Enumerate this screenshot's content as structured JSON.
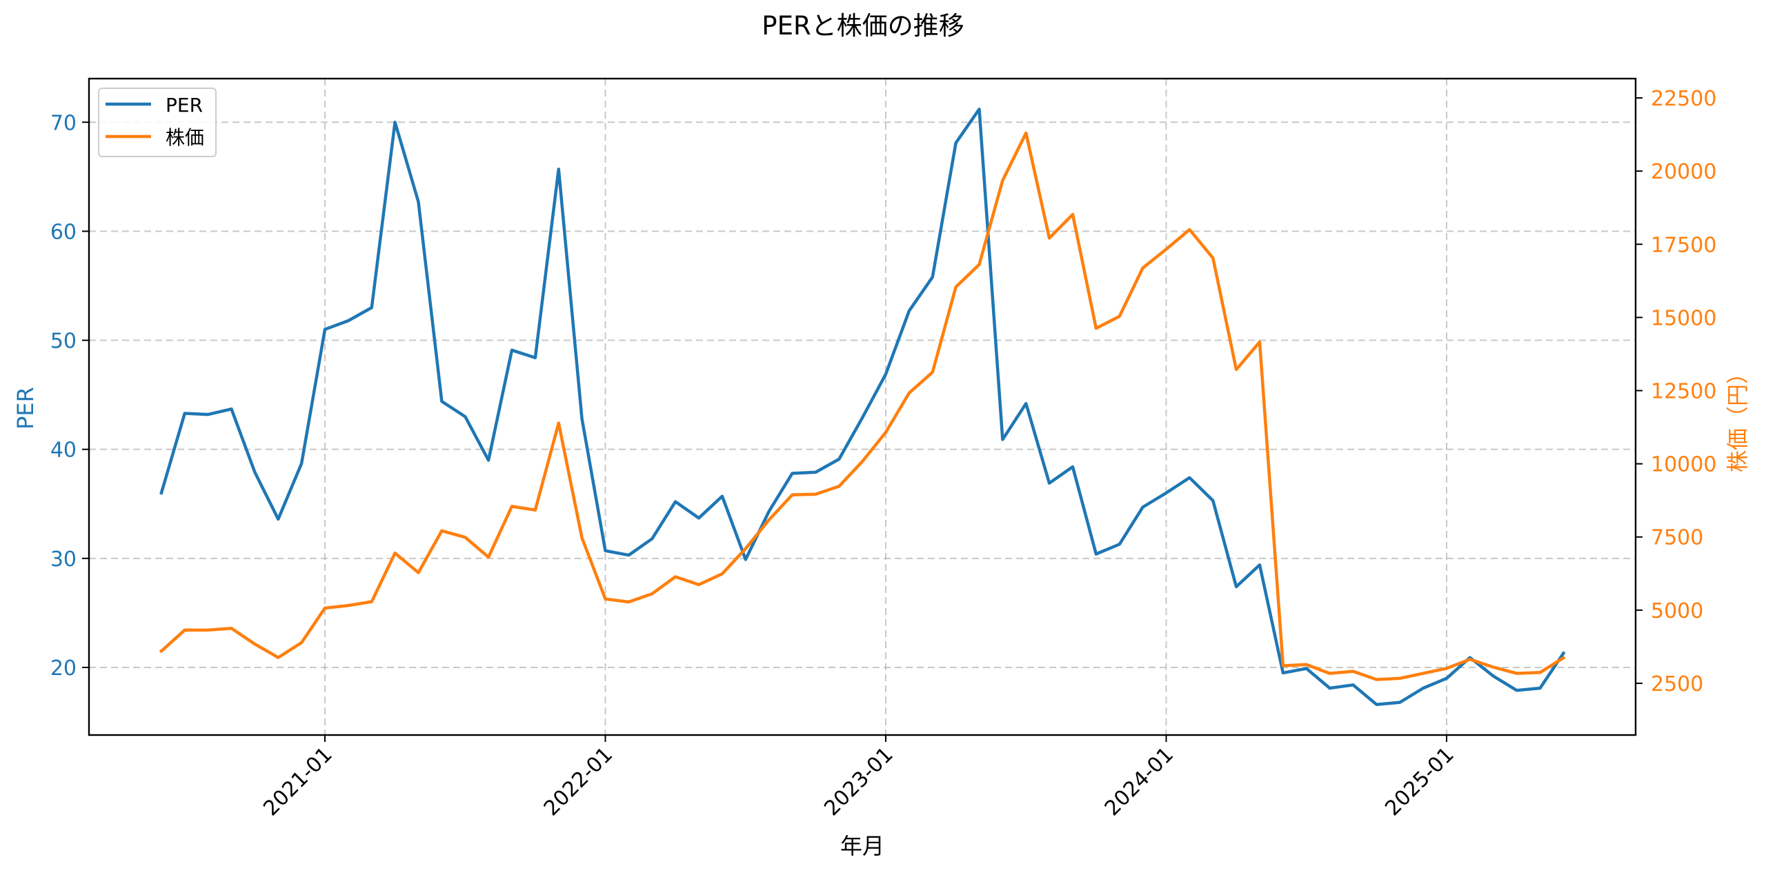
{
  "chart_data": {
    "type": "line",
    "title": "PERと株価の推移",
    "xlabel": "年月",
    "ylabel": "PER",
    "ylabel_right": "株価（円）",
    "x_start": "2020-06",
    "x_end": "2025-06",
    "x_frequency": "monthly",
    "x": [
      "2020-06",
      "2020-07",
      "2020-08",
      "2020-09",
      "2020-10",
      "2020-11",
      "2020-12",
      "2021-01",
      "2021-02",
      "2021-03",
      "2021-04",
      "2021-05",
      "2021-06",
      "2021-07",
      "2021-08",
      "2021-09",
      "2021-10",
      "2021-11",
      "2021-12",
      "2022-01",
      "2022-02",
      "2022-03",
      "2022-04",
      "2022-05",
      "2022-06",
      "2022-07",
      "2022-08",
      "2022-09",
      "2022-10",
      "2022-11",
      "2022-12",
      "2023-01",
      "2023-02",
      "2023-03",
      "2023-04",
      "2023-05",
      "2023-06",
      "2023-07",
      "2023-08",
      "2023-09",
      "2023-10",
      "2023-11",
      "2023-12",
      "2024-01",
      "2024-02",
      "2024-03",
      "2024-04",
      "2024-05",
      "2024-06",
      "2024-07",
      "2024-08",
      "2024-09",
      "2024-10",
      "2024-11",
      "2024-12",
      "2025-01",
      "2025-02",
      "2025-03",
      "2025-04",
      "2025-05",
      "2025-06"
    ],
    "x_ticks": [
      "2021-01",
      "2022-01",
      "2023-01",
      "2024-01",
      "2025-01"
    ],
    "series": [
      {
        "name": "PER",
        "axis": "left",
        "color": "#1f77b4",
        "values": [
          36.0,
          43.3,
          43.2,
          43.7,
          37.9,
          33.6,
          38.7,
          51.0,
          51.8,
          53.0,
          70.0,
          62.7,
          44.4,
          43.0,
          39.0,
          49.1,
          48.4,
          65.7,
          42.8,
          30.7,
          30.3,
          31.8,
          35.2,
          33.7,
          35.7,
          29.9,
          34.3,
          37.8,
          37.9,
          39.1,
          42.9,
          46.9,
          52.7,
          55.8,
          68.1,
          71.2,
          40.9,
          44.2,
          36.9,
          38.4,
          30.4,
          31.3,
          34.7,
          36.0,
          37.4,
          35.3,
          27.4,
          29.4,
          19.5,
          19.9,
          18.1,
          18.4,
          16.6,
          16.8,
          18.1,
          19.0,
          20.9,
          19.2,
          17.9,
          18.1,
          21.3
        ]
      },
      {
        "name": "株価",
        "axis": "right",
        "color": "#ff7f0e",
        "values": [
          3600,
          4320,
          4320,
          4380,
          3840,
          3380,
          3890,
          5070,
          5160,
          5290,
          6950,
          6280,
          7710,
          7490,
          6810,
          8545,
          8420,
          11390,
          7470,
          5380,
          5280,
          5560,
          6140,
          5870,
          6240,
          7100,
          8080,
          8940,
          8960,
          9230,
          10080,
          11075,
          12420,
          13130,
          16040,
          16810,
          19680,
          21300,
          17710,
          18520,
          14630,
          15040,
          16690,
          17330,
          18000,
          17030,
          13220,
          14160,
          3100,
          3140,
          2840,
          2910,
          2630,
          2670,
          2840,
          3010,
          3320,
          3050,
          2840,
          2870,
          3370
        ]
      }
    ],
    "ylim": [
      13.8,
      74.0
    ],
    "ylim_right": [
      733,
      23160
    ],
    "yticks_left": [
      20,
      30,
      40,
      50,
      60,
      70
    ],
    "yticks_right": [
      2500,
      5000,
      7500,
      10000,
      12500,
      15000,
      17500,
      20000,
      22500
    ],
    "grid": true,
    "grid_style": "dashed",
    "legend": {
      "position": "upper left",
      "entries": [
        "PER",
        "株価"
      ]
    }
  },
  "colors": {
    "per": "#1f77b4",
    "price": "#ff7f0e",
    "grid": "#b0b0b0",
    "axis": "#000000"
  }
}
